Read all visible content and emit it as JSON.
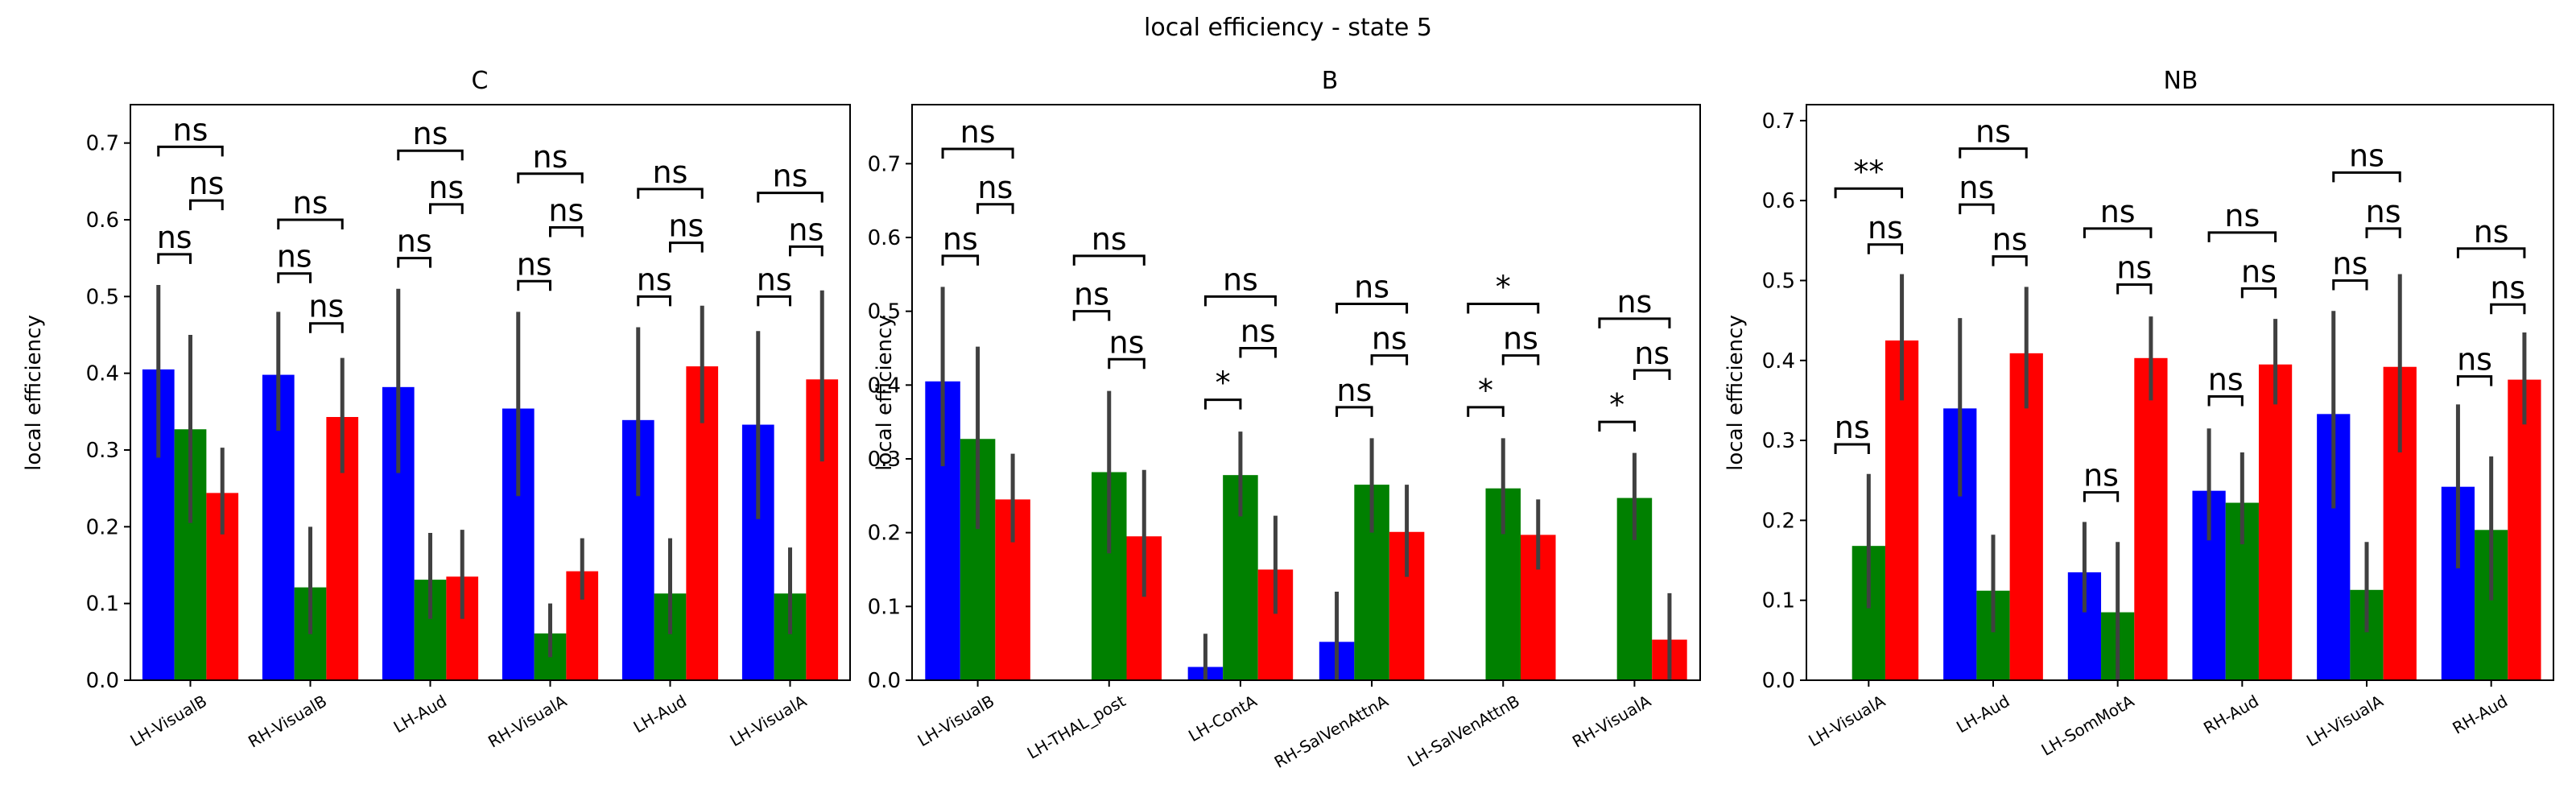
{
  "suptitle": "local efficiency - state 5",
  "colors": {
    "blue": "#0000ff",
    "green": "#008000",
    "red": "#ff0000",
    "errorbar": "#404040"
  },
  "chart_data": [
    {
      "type": "bar",
      "title": "C",
      "ylabel": "local efficiency",
      "xlabel": "",
      "ylim": [
        0,
        0.75
      ],
      "yticks": [
        "0.0",
        "0.1",
        "0.2",
        "0.3",
        "0.4",
        "0.5",
        "0.6",
        "0.7"
      ],
      "categories": [
        "LH-VisualB",
        "RH-VisualB",
        "LH-Aud",
        "RH-VisualA",
        "LH-Aud",
        "LH-VisualA"
      ],
      "series": [
        {
          "color": "blue",
          "values": [
            0.405,
            0.398,
            0.382,
            0.354,
            0.339,
            0.333
          ],
          "ci": [
            [
              0.29,
              0.515
            ],
            [
              0.325,
              0.48
            ],
            [
              0.27,
              0.51
            ],
            [
              0.24,
              0.48
            ],
            [
              0.24,
              0.46
            ],
            [
              0.21,
              0.455
            ]
          ]
        },
        {
          "color": "green",
          "values": [
            0.327,
            0.121,
            0.131,
            0.061,
            0.113,
            0.113
          ],
          "ci": [
            [
              0.205,
              0.45
            ],
            [
              0.06,
              0.2
            ],
            [
              0.08,
              0.192
            ],
            [
              0.03,
              0.1
            ],
            [
              0.06,
              0.185
            ],
            [
              0.06,
              0.173
            ]
          ]
        },
        {
          "color": "red",
          "values": [
            0.244,
            0.343,
            0.135,
            0.142,
            0.409,
            0.392
          ],
          "ci": [
            [
              0.19,
              0.303
            ],
            [
              0.27,
              0.42
            ],
            [
              0.08,
              0.196
            ],
            [
              0.105,
              0.185
            ],
            [
              0.335,
              0.488
            ],
            [
              0.285,
              0.508
            ]
          ]
        }
      ],
      "annotations": [
        {
          "category": 0,
          "pair": "blue-green",
          "label": "ns",
          "y": 0.555
        },
        {
          "category": 0,
          "pair": "green-red",
          "label": "ns",
          "y": 0.625
        },
        {
          "category": 0,
          "pair": "blue-red",
          "label": "ns",
          "y": 0.695
        },
        {
          "category": 1,
          "pair": "blue-green",
          "label": "ns",
          "y": 0.53
        },
        {
          "category": 1,
          "pair": "green-red",
          "label": "ns",
          "y": 0.465
        },
        {
          "category": 1,
          "pair": "blue-red",
          "label": "ns",
          "y": 0.6
        },
        {
          "category": 2,
          "pair": "blue-green",
          "label": "ns",
          "y": 0.55
        },
        {
          "category": 2,
          "pair": "green-red",
          "label": "ns",
          "y": 0.62
        },
        {
          "category": 2,
          "pair": "blue-red",
          "label": "ns",
          "y": 0.69
        },
        {
          "category": 3,
          "pair": "blue-green",
          "label": "ns",
          "y": 0.52
        },
        {
          "category": 3,
          "pair": "green-red",
          "label": "ns",
          "y": 0.59
        },
        {
          "category": 3,
          "pair": "blue-red",
          "label": "ns",
          "y": 0.66
        },
        {
          "category": 4,
          "pair": "blue-green",
          "label": "ns",
          "y": 0.5
        },
        {
          "category": 4,
          "pair": "green-red",
          "label": "ns",
          "y": 0.57
        },
        {
          "category": 4,
          "pair": "blue-red",
          "label": "ns",
          "y": 0.64
        },
        {
          "category": 5,
          "pair": "blue-green",
          "label": "ns",
          "y": 0.5
        },
        {
          "category": 5,
          "pair": "green-red",
          "label": "ns",
          "y": 0.565
        },
        {
          "category": 5,
          "pair": "blue-red",
          "label": "ns",
          "y": 0.635
        }
      ]
    },
    {
      "type": "bar",
      "title": "B",
      "ylabel": "local efficiency",
      "xlabel": "",
      "ylim": [
        0,
        0.78
      ],
      "yticks": [
        "0.0",
        "0.1",
        "0.2",
        "0.3",
        "0.4",
        "0.5",
        "0.6",
        "0.7"
      ],
      "categories": [
        "LH-VisualB",
        "LH-THAL_post",
        "LH-ContA",
        "RH-SalVenAttnA",
        "LH-SalVenAttnB",
        "RH-VisualA"
      ],
      "series": [
        {
          "color": "blue",
          "values": [
            0.405,
            null,
            0.018,
            0.052,
            null,
            null
          ],
          "ci": [
            [
              0.29,
              0.533
            ],
            null,
            [
              0.0,
              0.063
            ],
            [
              0.0,
              0.12
            ],
            null,
            null
          ]
        },
        {
          "color": "green",
          "values": [
            0.327,
            0.282,
            0.278,
            0.265,
            0.26,
            0.247
          ],
          "ci": [
            [
              0.205,
              0.452
            ],
            [
              0.172,
              0.392
            ],
            [
              0.222,
              0.337
            ],
            [
              0.2,
              0.328
            ],
            [
              0.198,
              0.328
            ],
            [
              0.19,
              0.308
            ]
          ]
        },
        {
          "color": "red",
          "values": [
            0.245,
            0.195,
            0.15,
            0.201,
            0.197,
            0.055
          ],
          "ci": [
            [
              0.187,
              0.307
            ],
            [
              0.113,
              0.285
            ],
            [
              0.09,
              0.223
            ],
            [
              0.14,
              0.265
            ],
            [
              0.15,
              0.245
            ],
            [
              0.0,
              0.118
            ]
          ]
        }
      ],
      "annotations": [
        {
          "category": 0,
          "pair": "blue-green",
          "label": "ns",
          "y": 0.575
        },
        {
          "category": 0,
          "pair": "green-red",
          "label": "ns",
          "y": 0.645
        },
        {
          "category": 0,
          "pair": "blue-red",
          "label": "ns",
          "y": 0.72
        },
        {
          "category": 1,
          "pair": "blue-green",
          "label": "ns",
          "y": 0.5
        },
        {
          "category": 1,
          "pair": "green-red",
          "label": "ns",
          "y": 0.435
        },
        {
          "category": 1,
          "pair": "blue-red",
          "label": "ns",
          "y": 0.575
        },
        {
          "category": 2,
          "pair": "blue-green",
          "label": "*",
          "y": 0.38
        },
        {
          "category": 2,
          "pair": "green-red",
          "label": "ns",
          "y": 0.45
        },
        {
          "category": 2,
          "pair": "blue-red",
          "label": "ns",
          "y": 0.52
        },
        {
          "category": 3,
          "pair": "blue-green",
          "label": "ns",
          "y": 0.37
        },
        {
          "category": 3,
          "pair": "green-red",
          "label": "ns",
          "y": 0.44
        },
        {
          "category": 3,
          "pair": "blue-red",
          "label": "ns",
          "y": 0.51
        },
        {
          "category": 4,
          "pair": "blue-green",
          "label": "*",
          "y": 0.37
        },
        {
          "category": 4,
          "pair": "green-red",
          "label": "ns",
          "y": 0.44
        },
        {
          "category": 4,
          "pair": "blue-red",
          "label": "*",
          "y": 0.51
        },
        {
          "category": 5,
          "pair": "blue-green",
          "label": "*",
          "y": 0.35
        },
        {
          "category": 5,
          "pair": "green-red",
          "label": "ns",
          "y": 0.42
        },
        {
          "category": 5,
          "pair": "blue-red",
          "label": "ns",
          "y": 0.49
        }
      ]
    },
    {
      "type": "bar",
      "title": "NB",
      "ylabel": "local efficiency",
      "xlabel": "",
      "ylim": [
        0,
        0.72
      ],
      "yticks": [
        "0.0",
        "0.1",
        "0.2",
        "0.3",
        "0.4",
        "0.5",
        "0.6",
        "0.7"
      ],
      "categories": [
        "LH-VisualA",
        "LH-Aud",
        "LH-SomMotA",
        "RH-Aud",
        "LH-VisualA",
        "RH-Aud"
      ],
      "series": [
        {
          "color": "blue",
          "values": [
            null,
            0.34,
            0.135,
            0.237,
            0.333,
            0.242
          ],
          "ci": [
            null,
            [
              0.23,
              0.453
            ],
            [
              0.085,
              0.198
            ],
            [
              0.175,
              0.315
            ],
            [
              0.215,
              0.462
            ],
            [
              0.14,
              0.345
            ]
          ]
        },
        {
          "color": "green",
          "values": [
            0.168,
            0.112,
            0.085,
            0.222,
            0.113,
            0.188
          ],
          "ci": [
            [
              0.09,
              0.258
            ],
            [
              0.06,
              0.182
            ],
            [
              0.0,
              0.173
            ],
            [
              0.17,
              0.285
            ],
            [
              0.06,
              0.173
            ],
            [
              0.1,
              0.28
            ]
          ]
        },
        {
          "color": "red",
          "values": [
            0.425,
            0.409,
            0.403,
            0.395,
            0.392,
            0.376
          ],
          "ci": [
            [
              0.35,
              0.508
            ],
            [
              0.34,
              0.492
            ],
            [
              0.35,
              0.455
            ],
            [
              0.345,
              0.452
            ],
            [
              0.285,
              0.508
            ],
            [
              0.32,
              0.435
            ]
          ]
        }
      ],
      "annotations": [
        {
          "category": 0,
          "pair": "green-red",
          "label": "ns",
          "y": 0.545
        },
        {
          "category": 0,
          "pair": "blue-green",
          "label": "ns",
          "y": 0.295
        },
        {
          "category": 0,
          "pair": "blue-red",
          "label": "**",
          "y": 0.615
        },
        {
          "category": 1,
          "pair": "blue-green",
          "label": "ns",
          "y": 0.595
        },
        {
          "category": 1,
          "pair": "green-red",
          "label": "ns",
          "y": 0.53
        },
        {
          "category": 1,
          "pair": "blue-red",
          "label": "ns",
          "y": 0.665
        },
        {
          "category": 2,
          "pair": "blue-green",
          "label": "ns",
          "y": 0.235
        },
        {
          "category": 2,
          "pair": "green-red",
          "label": "ns",
          "y": 0.495
        },
        {
          "category": 2,
          "pair": "blue-red",
          "label": "ns",
          "y": 0.565
        },
        {
          "category": 3,
          "pair": "blue-green",
          "label": "ns",
          "y": 0.355
        },
        {
          "category": 3,
          "pair": "green-red",
          "label": "ns",
          "y": 0.49
        },
        {
          "category": 3,
          "pair": "blue-red",
          "label": "ns",
          "y": 0.56
        },
        {
          "category": 4,
          "pair": "blue-green",
          "label": "ns",
          "y": 0.5
        },
        {
          "category": 4,
          "pair": "green-red",
          "label": "ns",
          "y": 0.565
        },
        {
          "category": 4,
          "pair": "blue-red",
          "label": "ns",
          "y": 0.635
        },
        {
          "category": 5,
          "pair": "blue-green",
          "label": "ns",
          "y": 0.38
        },
        {
          "category": 5,
          "pair": "green-red",
          "label": "ns",
          "y": 0.47
        },
        {
          "category": 5,
          "pair": "blue-red",
          "label": "ns",
          "y": 0.54
        }
      ]
    }
  ]
}
